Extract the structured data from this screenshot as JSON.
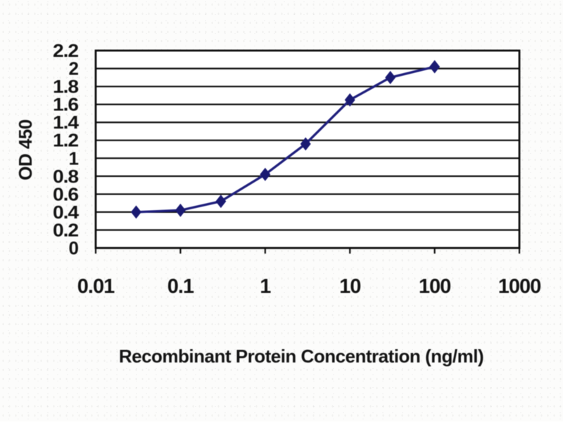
{
  "figure": {
    "kind": "ELISA standard curve line chart",
    "x_axis_title": "Recombinant Protein Concentration (ng/ml)",
    "y_axis_title": "OD 450"
  },
  "colors": {
    "line": "#23237d",
    "marker": "#1d1d72",
    "grid": "#161616",
    "frame": "#111111",
    "text": "#171717",
    "plot_background": "#ffffff"
  },
  "chart_data": {
    "type": "line",
    "title": "",
    "xlabel": "Recombinant Protein Concentration (ng/ml)",
    "ylabel": "OD 450",
    "x_scale": "log10",
    "xlim": [
      0.01,
      1000
    ],
    "ylim": [
      0,
      2.2
    ],
    "x": [
      0.03,
      0.1,
      0.3,
      1,
      3,
      10,
      30,
      100
    ],
    "series": [
      {
        "name": "OD 450",
        "values": [
          0.4,
          0.42,
          0.52,
          0.82,
          1.16,
          1.65,
          1.9,
          2.02
        ]
      }
    ],
    "x_tick_values": [
      0.01,
      0.1,
      1,
      10,
      100,
      1000
    ],
    "x_tick_labels": [
      "0.01",
      "0.1",
      "1",
      "10",
      "100",
      "1000"
    ],
    "y_tick_values": [
      0,
      0.2,
      0.4,
      0.6,
      0.8,
      1,
      1.2,
      1.4,
      1.6,
      1.8,
      2,
      2.2
    ],
    "y_tick_labels": [
      "0",
      "0.2",
      "0.4",
      "0.6",
      "0.8",
      "1",
      "1.2",
      "1.4",
      "1.6",
      "1.8",
      "2",
      "2.2"
    ],
    "grid": "horizontal",
    "legend_position": "none",
    "marker": "diamond"
  }
}
